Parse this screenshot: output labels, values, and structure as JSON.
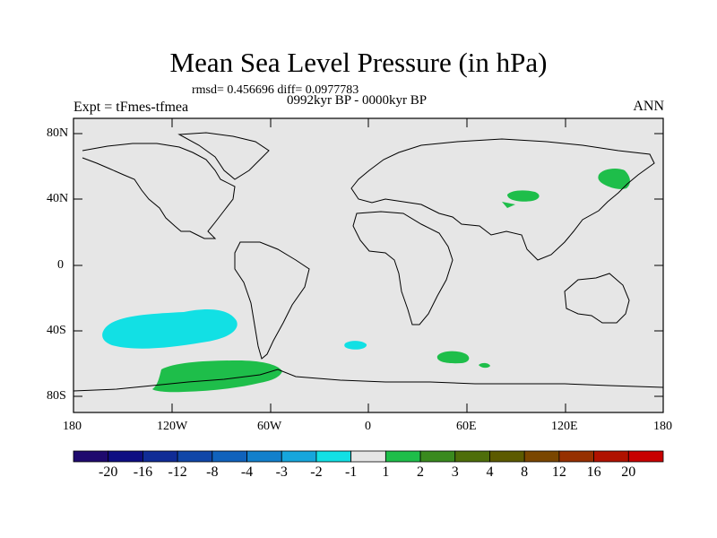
{
  "title": "Mean Sea Level Pressure (in hPa)",
  "stats": "rmsd= 0.456696 diff= 0.0977783",
  "period": "0992kyr BP - 0000kyr BP",
  "experiment": "Expt = tFmes-tfmea",
  "season": "ANN",
  "axes": {
    "lat_ticks": [
      "80N",
      "40N",
      "0",
      "40S",
      "80S"
    ],
    "lon_ticks": [
      "180",
      "120W",
      "60W",
      "0",
      "60E",
      "120E",
      "180"
    ]
  },
  "colorbar": {
    "colors": [
      "#1f0a6e",
      "#0e0e82",
      "#102c96",
      "#1046a8",
      "#1062bc",
      "#1280cc",
      "#16a6dc",
      "#12e0e4",
      "#e6e6e6",
      "#1ebe4a",
      "#3a8a1e",
      "#4e6e0a",
      "#5c5a00",
      "#7a4600",
      "#963000",
      "#b01200",
      "#c80000"
    ],
    "labels": [
      "-20",
      "-16",
      "-12",
      "-8",
      "-4",
      "-3",
      "-2",
      "-1",
      "1",
      "2",
      "3",
      "4",
      "8",
      "12",
      "16",
      "20"
    ]
  },
  "anomaly_regions": [
    {
      "name": "south-pacific-negative",
      "value": "-2 to -1"
    },
    {
      "name": "south-atlantic-negative",
      "value": "-2 to -1"
    },
    {
      "name": "southern-ocean-positive",
      "value": "1 to 2"
    },
    {
      "name": "indian-ocean-positive",
      "value": "1 to 2"
    },
    {
      "name": "central-asia-positive",
      "value": "1 to 2"
    },
    {
      "name": "east-siberia-positive",
      "value": "1 to 2"
    }
  ],
  "colors": {
    "background_field": "#e6e6e6",
    "negative_anomaly": "#12e0e4",
    "positive_anomaly": "#1ebe4a",
    "coastline": "#000000"
  }
}
